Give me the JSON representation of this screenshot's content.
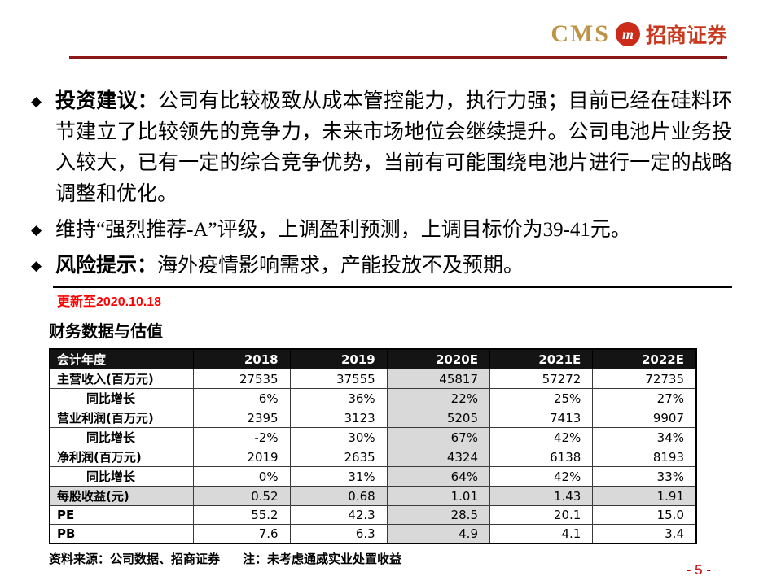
{
  "header": {
    "logo_cms": "CMS",
    "logo_icon_letter": "m",
    "logo_cn": "招商证券"
  },
  "content": {
    "bullet_marker": "◆",
    "bullets": [
      {
        "lead": "投资建议：",
        "text": "公司有比较极致从成本管控能力，执行力强；目前已经在硅料环节建立了比较领先的竞争力，未来市场地位会继续提升。公司电池片业务投入较大，已有一定的综合竞争优势，当前有可能围绕电池片进行一定的战略调整和优化。"
      },
      {
        "lead": "",
        "text": "维持“强烈推荐-A”评级，上调盈利预测，上调目标价为39-41元。"
      },
      {
        "lead": "风险提示：",
        "text": "海外疫情影响需求，产能投放不及预期。"
      }
    ],
    "update_note": "更新至2020.10.18",
    "section_title": "财务数据与估值"
  },
  "table": {
    "columns": [
      "会计年度",
      "2018",
      "2019",
      "2020E",
      "2021E",
      "2022E"
    ],
    "highlight_value_col": 2,
    "rows": [
      {
        "label": "主营收入(百万元)",
        "values": [
          "27535",
          "37555",
          "45817",
          "57272",
          "72735"
        ],
        "indent": false,
        "shaded": false
      },
      {
        "label": "同比增长",
        "values": [
          "6%",
          "36%",
          "22%",
          "25%",
          "27%"
        ],
        "indent": true,
        "shaded": false
      },
      {
        "label": "营业利润(百万元)",
        "values": [
          "2395",
          "3123",
          "5205",
          "7413",
          "9907"
        ],
        "indent": false,
        "shaded": false
      },
      {
        "label": "同比增长",
        "values": [
          "-2%",
          "30%",
          "67%",
          "42%",
          "34%"
        ],
        "indent": true,
        "shaded": false
      },
      {
        "label": "净利润(百万元)",
        "values": [
          "2019",
          "2635",
          "4324",
          "6138",
          "8193"
        ],
        "indent": false,
        "shaded": false
      },
      {
        "label": "同比增长",
        "values": [
          "0%",
          "31%",
          "64%",
          "42%",
          "33%"
        ],
        "indent": true,
        "shaded": false
      },
      {
        "label": "每股收益(元)",
        "values": [
          "0.52",
          "0.68",
          "1.01",
          "1.43",
          "1.91"
        ],
        "indent": false,
        "shaded": true
      },
      {
        "label": "PE",
        "values": [
          "55.2",
          "42.3",
          "28.5",
          "20.1",
          "15.0"
        ],
        "indent": false,
        "shaded": false
      },
      {
        "label": "PB",
        "values": [
          "7.6",
          "6.3",
          "4.9",
          "4.1",
          "3.4"
        ],
        "indent": false,
        "shaded": false
      }
    ],
    "source": "资料来源：公司数据、招商证券",
    "note": "注：未考虑通威实业处置收益"
  },
  "footer": {
    "page_label": "- 5 -"
  },
  "colors": {
    "accent_red": "#ff0000",
    "page_number_red": "#c00000",
    "header_rule_red": "#8b1717",
    "logo_gold": "#bf9344",
    "logo_red": "#c9391f",
    "table_header_bg": "#141414",
    "shade_gray": "#d9d9d9"
  }
}
